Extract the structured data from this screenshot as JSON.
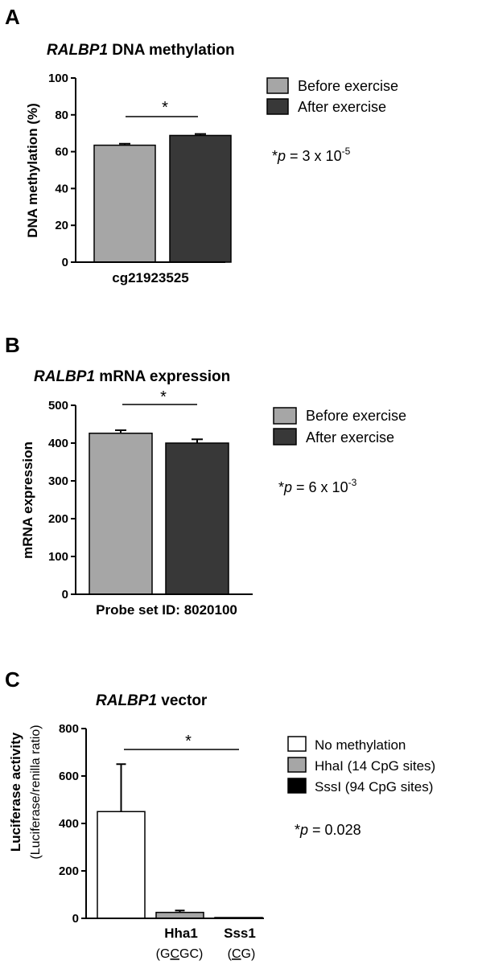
{
  "colors": {
    "before": "#a6a6a6",
    "after": "#383838",
    "none": "#ffffff",
    "hhai": "#a6a6a6",
    "sssi": "#000000"
  },
  "chart_data": [
    {
      "panel": "A",
      "type": "bar",
      "title_gene": "RALBP1",
      "title_rest": " DNA methylation",
      "ylabel": "DNA methylation (%)",
      "xlabel": "cg21923525",
      "ylim": [
        0,
        100
      ],
      "yticks": [
        "0",
        "20",
        "40",
        "60",
        "80",
        "100"
      ],
      "series": [
        {
          "name": "Before exercise",
          "value": 63.5,
          "error": 0.8
        },
        {
          "name": "After exercise",
          "value": 68.8,
          "error": 0.8
        }
      ],
      "significance": "*",
      "pvalue": {
        "prefix": "*",
        "p": "p",
        "mid": " = 3 x 10",
        "exp": "-5"
      },
      "legend": "right"
    },
    {
      "panel": "B",
      "type": "bar",
      "title_gene": "RALBP1",
      "title_rest": " mRNA expression",
      "ylabel": "mRNA expression",
      "xlabel": "Probe set ID: 8020100",
      "ylim": [
        0,
        500
      ],
      "yticks": [
        "0",
        "100",
        "200",
        "300",
        "400",
        "500"
      ],
      "series": [
        {
          "name": "Before exercise",
          "value": 426,
          "error": 8
        },
        {
          "name": "After exercise",
          "value": 400,
          "error": 10
        }
      ],
      "significance": "*",
      "pvalue": {
        "prefix": "*",
        "p": "p",
        "mid": " = 6 x 10",
        "exp": "-3"
      },
      "legend": "right"
    },
    {
      "panel": "C",
      "type": "bar",
      "title_gene": "RALBP1",
      "title_rest": " vector",
      "ylabel": "Luciferase activity",
      "ylabel2": "(Luciferase/renilla ratio)",
      "ylim": [
        0,
        800
      ],
      "yticks": [
        "0",
        "200",
        "400",
        "600",
        "800"
      ],
      "categories": [
        {
          "label": "",
          "sub": ""
        },
        {
          "label": "Hha1",
          "sub_pre": "(G",
          "sub_u": "C",
          "sub_post": "GC)"
        },
        {
          "label": "Sss1",
          "sub_pre": "(",
          "sub_u": "C",
          "sub_post": "G)"
        }
      ],
      "series": [
        {
          "name": "No methylation",
          "value": 450,
          "error": 200
        },
        {
          "name": "HhaI (14 CpG sites)",
          "value": 25,
          "error": 8
        },
        {
          "name": "SssI (94 CpG sites)",
          "value": 2,
          "error": 0
        }
      ],
      "significance": "*",
      "pvalue": {
        "prefix": "*",
        "p": "p",
        "mid": " = 0.028",
        "exp": ""
      },
      "legend": "right"
    }
  ]
}
